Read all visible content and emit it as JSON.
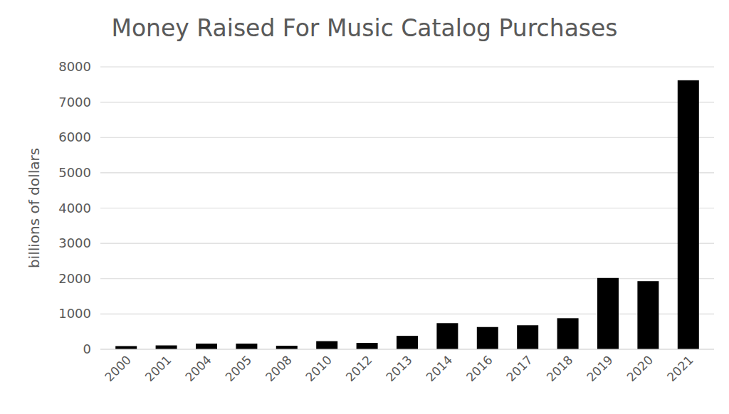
{
  "chart_data": {
    "type": "bar",
    "title": "Money Raised For Music Catalog Purchases",
    "y_label": "billions of dollars",
    "categories": [
      "2000",
      "2001",
      "2004",
      "2005",
      "2008",
      "2010",
      "2012",
      "2013",
      "2014",
      "2016",
      "2017",
      "2018",
      "2019",
      "2020",
      "2021"
    ],
    "values": [
      90,
      110,
      160,
      160,
      100,
      230,
      180,
      380,
      740,
      630,
      680,
      880,
      2020,
      1930,
      7620
    ],
    "color": "#000000",
    "ylim": [
      0,
      8000
    ],
    "yticks": [
      0,
      1000,
      2000,
      3000,
      4000,
      5000,
      6000,
      7000,
      8000
    ],
    "grid": true
  }
}
